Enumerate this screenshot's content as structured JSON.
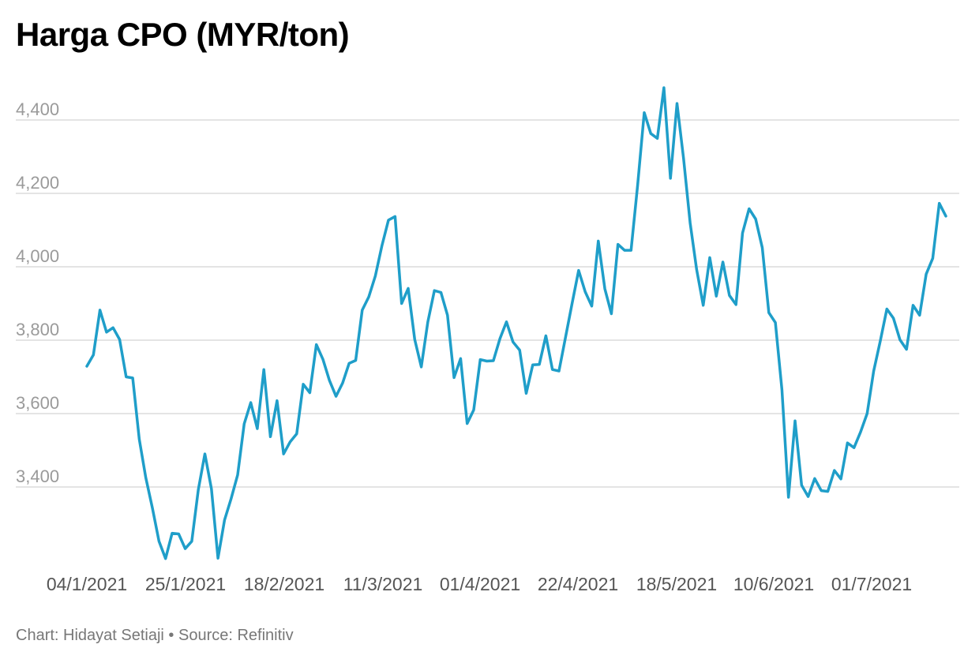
{
  "chart_data": {
    "type": "line",
    "title": "Harga CPO (MYR/ton)",
    "xlabel": "",
    "ylabel": "",
    "x_tick_labels": [
      "04/1/2021",
      "25/1/2021",
      "18/2/2021",
      "11/3/2021",
      "01/4/2021",
      "22/4/2021",
      "18/5/2021",
      "10/6/2021",
      "01/7/2021"
    ],
    "y_tick_labels": [
      "3,400",
      "3,600",
      "3,800",
      "4,000",
      "4,200",
      "4,400"
    ],
    "y_ticks": [
      3400,
      3600,
      3800,
      4000,
      4200,
      4400
    ],
    "ylim": [
      3190,
      4500
    ],
    "grid": true,
    "legend": "none",
    "color": "#1f9ec9",
    "series": [
      {
        "values": [
          3729,
          3760,
          3882,
          3822,
          3834,
          3802,
          3700,
          3697,
          3530,
          3425,
          3342,
          3252,
          3205,
          3274,
          3272,
          3232,
          3252,
          3393,
          3490,
          3395,
          3206,
          3310,
          3368,
          3433,
          3572,
          3630,
          3559,
          3720,
          3537,
          3635,
          3490,
          3523,
          3545,
          3680,
          3657,
          3788,
          3748,
          3690,
          3647,
          3683,
          3737,
          3745,
          3882,
          3918,
          3975,
          4057,
          4127,
          4137,
          3900,
          3941,
          3802,
          3727,
          3850,
          3935,
          3930,
          3868,
          3698,
          3750,
          3573,
          3610,
          3747,
          3743,
          3744,
          3804,
          3850,
          3795,
          3773,
          3655,
          3733,
          3734,
          3812,
          3720,
          3716,
          3808,
          3900,
          3990,
          3932,
          3893,
          4070,
          3940,
          3872,
          4061,
          4045,
          4045,
          4222,
          4420,
          4363,
          4350,
          4488,
          4241,
          4445,
          4295,
          4120,
          3992,
          3895,
          4025,
          3920,
          4013,
          3922,
          3897,
          4092,
          4158,
          4130,
          4052,
          3875,
          3848,
          3665,
          3372,
          3580,
          3405,
          3374,
          3423,
          3390,
          3388,
          3445,
          3422,
          3520,
          3507,
          3550,
          3600,
          3716,
          3797,
          3885,
          3860,
          3801,
          3775,
          3895,
          3868,
          3980,
          4023,
          4173,
          4138
        ]
      }
    ]
  },
  "footer": "Chart: Hidayat Setiaji • Source: Refinitiv"
}
